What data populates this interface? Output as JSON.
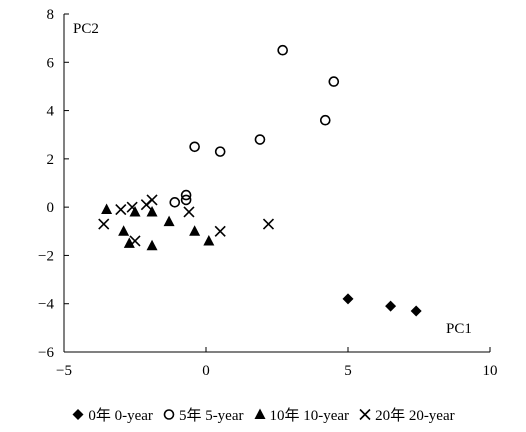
{
  "chart_data": {
    "type": "scatter",
    "title": "",
    "xlabel": "PC1",
    "ylabel": "PC2",
    "xlim": [
      -5,
      10
    ],
    "ylim": [
      -6,
      8
    ],
    "xticks": [
      -5,
      0,
      5,
      10
    ],
    "yticks": [
      -6,
      -4,
      -2,
      0,
      2,
      4,
      6,
      8
    ],
    "xtick_labels": [
      "−5",
      "0",
      "5",
      "10"
    ],
    "ytick_labels": [
      "−6",
      "−4",
      "−2",
      "0",
      "2",
      "4",
      "6",
      "8"
    ],
    "grid": false,
    "legend_position": "bottom",
    "series": [
      {
        "name": "0年  0-year",
        "marker": "diamond",
        "x": [
          5.0,
          6.5,
          7.4
        ],
        "y": [
          -3.8,
          -4.1,
          -4.3
        ]
      },
      {
        "name": "5年 5-year",
        "marker": "circle",
        "x": [
          -1.1,
          -0.7,
          -0.7,
          -0.4,
          0.5,
          1.9,
          2.7,
          4.2,
          4.5
        ],
        "y": [
          0.2,
          0.3,
          0.5,
          2.5,
          2.3,
          2.8,
          6.5,
          3.6,
          5.2
        ]
      },
      {
        "name": "10年 10-year",
        "marker": "triangle",
        "x": [
          -3.5,
          -2.9,
          -2.7,
          -2.5,
          -1.9,
          -1.9,
          -1.3,
          -0.4,
          0.1
        ],
        "y": [
          -0.1,
          -1.0,
          -1.5,
          -0.2,
          -0.2,
          -1.6,
          -0.6,
          -1.0,
          -1.4
        ]
      },
      {
        "name": "20年 20-year",
        "marker": "x",
        "x": [
          -3.6,
          -3.0,
          -2.6,
          -2.5,
          -2.1,
          -1.9,
          -0.6,
          0.5,
          2.2
        ],
        "y": [
          -0.7,
          -0.1,
          0.0,
          -1.4,
          0.1,
          0.3,
          -0.2,
          -1.0,
          -0.7
        ]
      }
    ]
  }
}
